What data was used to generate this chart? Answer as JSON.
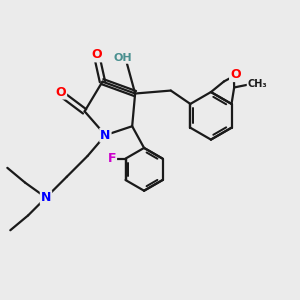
{
  "bg_color": "#ebebeb",
  "bond_color": "#1a1a1a",
  "bond_width": 1.6,
  "atom_colors": {
    "O": "#ff0000",
    "N": "#0000ff",
    "F": "#cc00cc",
    "H": "#4a9090",
    "C": "#1a1a1a"
  },
  "scale": 10
}
